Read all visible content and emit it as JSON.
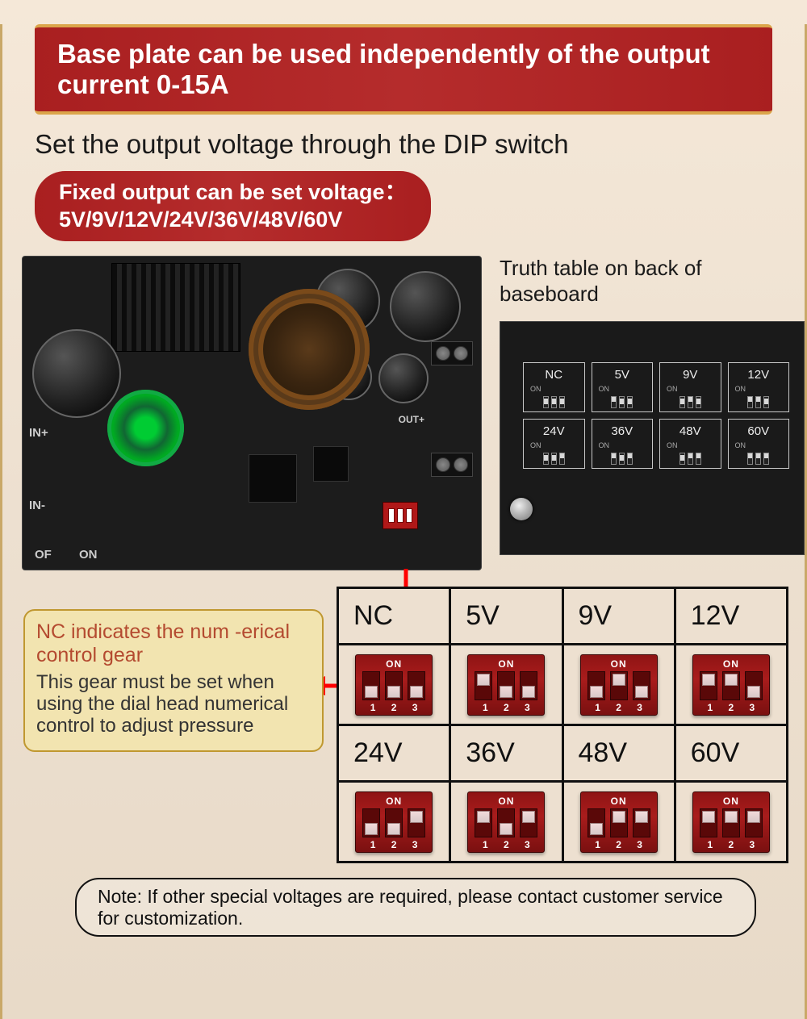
{
  "banner": {
    "text": "Base plate can be used independently of the output current 0-15A",
    "bg_gradient": [
      "#a91f20",
      "#b52c2c",
      "#a91f20"
    ],
    "border_color": "#dba54a",
    "text_color": "#ffffff"
  },
  "subtitle": "Set the output voltage through the DIP switch",
  "pill": {
    "line1": "Fixed output can be set voltage：",
    "line2": "5V/9V/12V/24V/36V/48V/60V"
  },
  "truth_caption": "Truth table on back of baseboard",
  "pcb_silk": {
    "in_plus": "IN+",
    "in_minus": "IN-",
    "off": "OF",
    "on": "ON",
    "out": "OUT+"
  },
  "mini_truth": {
    "labels": [
      "NC",
      "5V",
      "9V",
      "12V",
      "24V",
      "36V",
      "48V",
      "60V"
    ],
    "switches": [
      [
        "down",
        "down",
        "down"
      ],
      [
        "up",
        "down",
        "down"
      ],
      [
        "down",
        "up",
        "down"
      ],
      [
        "up",
        "up",
        "down"
      ],
      [
        "down",
        "down",
        "up"
      ],
      [
        "up",
        "down",
        "up"
      ],
      [
        "down",
        "up",
        "up"
      ],
      [
        "up",
        "up",
        "up"
      ]
    ],
    "on_label": "ON"
  },
  "note": {
    "title": "NC indicates the num -erical control gear",
    "body": "This gear must be set when using the dial head numerical control to adjust pressure"
  },
  "truth_table": {
    "labels": [
      "NC",
      "5V",
      "9V",
      "12V",
      "24V",
      "36V",
      "48V",
      "60V"
    ],
    "switches": [
      [
        "down",
        "down",
        "down"
      ],
      [
        "up",
        "down",
        "down"
      ],
      [
        "down",
        "up",
        "down"
      ],
      [
        "up",
        "up",
        "down"
      ],
      [
        "down",
        "down",
        "up"
      ],
      [
        "up",
        "down",
        "up"
      ],
      [
        "down",
        "up",
        "up"
      ],
      [
        "up",
        "up",
        "up"
      ]
    ],
    "on_label": "ON",
    "numbers": [
      "1",
      "2",
      "3"
    ]
  },
  "footnote": "Note: If other special voltages are required, please contact customer service for customization.",
  "arrows": {
    "color": "#ff0000",
    "stroke_width": 5
  },
  "colors": {
    "page_bg_top": "#f5e8d8",
    "page_bg_bottom": "#e8dac8",
    "note_bg": "#f2e4b0",
    "note_border": "#c09830",
    "note_title_color": "#b44a30",
    "dip_bg": "#a91c1c",
    "dip_knob": "#e8d8d8",
    "table_border": "#111111"
  }
}
